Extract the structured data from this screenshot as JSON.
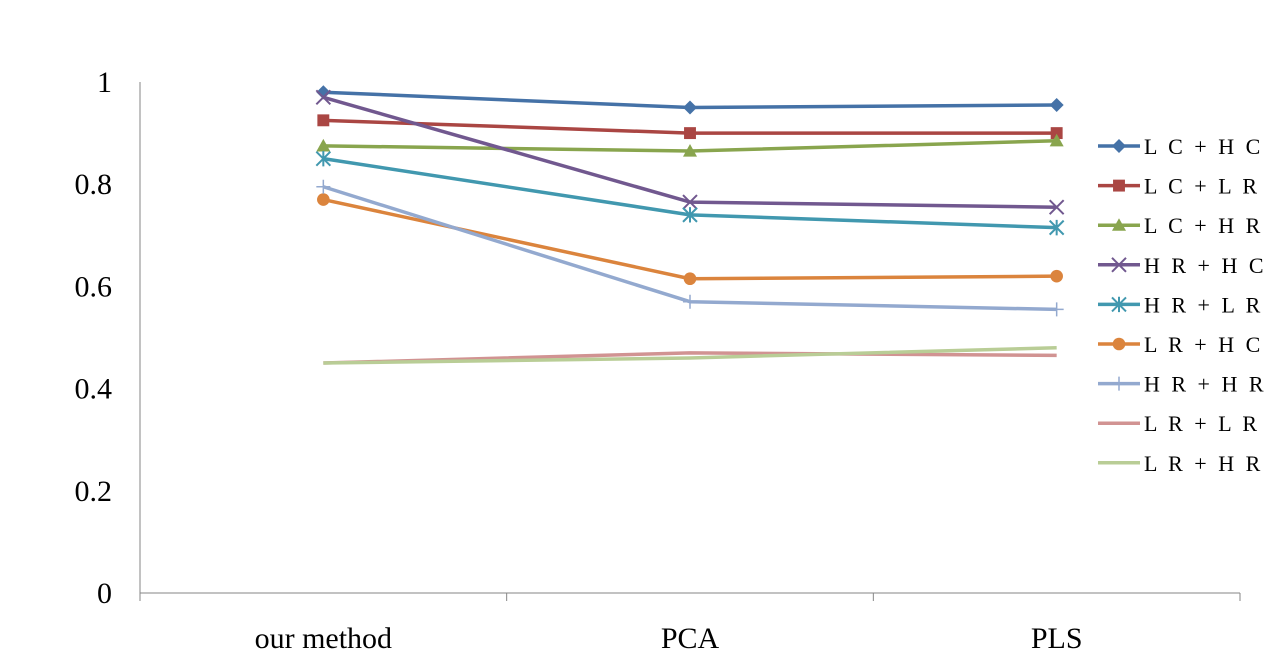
{
  "chart_data": {
    "type": "line",
    "title": "",
    "xlabel": "",
    "ylabel": "",
    "categories": [
      "our method",
      "PCA",
      "PLS"
    ],
    "ylim": [
      0,
      1
    ],
    "yticks": [
      "0",
      "0.2",
      "0.4",
      "0.6",
      "0.8",
      "1"
    ],
    "grid": false,
    "legend_position": "right",
    "series": [
      {
        "name": "L C + H C",
        "values": [
          0.98,
          0.95,
          0.955
        ],
        "color": "#4572A7",
        "marker": "diamond"
      },
      {
        "name": "L C + L R",
        "values": [
          0.925,
          0.9,
          0.9
        ],
        "color": "#AA4643",
        "marker": "square"
      },
      {
        "name": "L C + H R",
        "values": [
          0.875,
          0.865,
          0.885
        ],
        "color": "#89A54E",
        "marker": "triangle"
      },
      {
        "name": "H R + H C",
        "values": [
          0.97,
          0.765,
          0.755
        ],
        "color": "#71588F",
        "marker": "x"
      },
      {
        "name": "H R + L R",
        "values": [
          0.85,
          0.74,
          0.715
        ],
        "color": "#4198AF",
        "marker": "star"
      },
      {
        "name": "L R + H C",
        "values": [
          0.77,
          0.615,
          0.62
        ],
        "color": "#DB843D",
        "marker": "circle"
      },
      {
        "name": "H R + H R",
        "values": [
          0.795,
          0.57,
          0.555
        ],
        "color": "#93A9CF",
        "marker": "plus"
      },
      {
        "name": "L R + L R",
        "values": [
          0.45,
          0.47,
          0.465
        ],
        "color": "#D19392",
        "marker": "none"
      },
      {
        "name": "L R + H R",
        "values": [
          0.45,
          0.46,
          0.48
        ],
        "color": "#B9CD96",
        "marker": "none"
      }
    ]
  }
}
